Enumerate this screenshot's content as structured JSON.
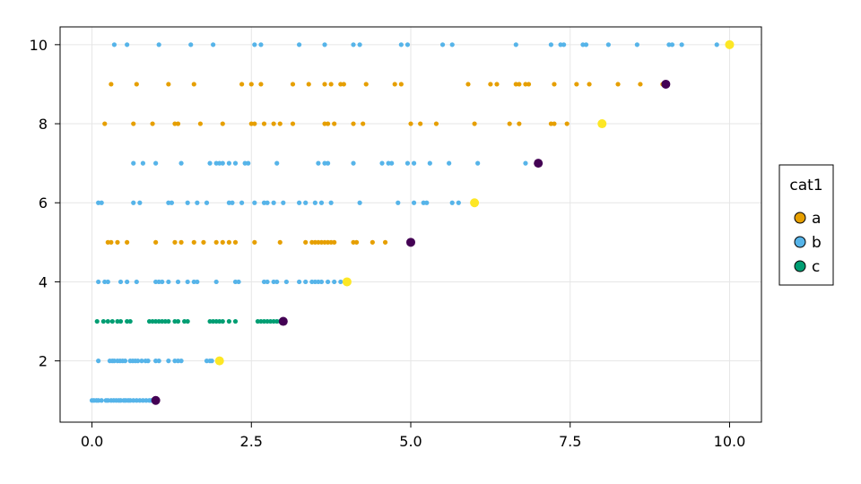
{
  "chart_data": {
    "type": "scatter",
    "xlim": [
      -0.5,
      10.5
    ],
    "ylim": [
      0.45,
      10.45
    ],
    "x_ticks": [
      {
        "value": 0,
        "label": "0.0"
      },
      {
        "value": 2.5,
        "label": "2.5"
      },
      {
        "value": 5,
        "label": "5.0"
      },
      {
        "value": 7.5,
        "label": "7.5"
      },
      {
        "value": 10,
        "label": "10.0"
      }
    ],
    "y_ticks": [
      {
        "value": 2,
        "label": "2"
      },
      {
        "value": 4,
        "label": "4"
      },
      {
        "value": 6,
        "label": "6"
      },
      {
        "value": 8,
        "label": "8"
      },
      {
        "value": 10,
        "label": "10"
      }
    ],
    "grid": true,
    "legend": {
      "title": "cat1",
      "placement": "right",
      "entries": [
        {
          "label": "a",
          "color": "#E69F00"
        },
        {
          "label": "b",
          "color": "#56B4E9"
        },
        {
          "label": "c",
          "color": "#009E73"
        }
      ]
    },
    "groups": [
      {
        "y": 1,
        "category": "b",
        "color": "#56B4E9",
        "x": [
          0.0,
          0.03,
          0.07,
          0.1,
          0.15,
          0.22,
          0.25,
          0.3,
          0.34,
          0.38,
          0.42,
          0.45,
          0.5,
          0.53,
          0.57,
          0.6,
          0.65,
          0.7,
          0.75,
          0.8,
          0.85,
          0.9,
          0.93,
          0.97
        ]
      },
      {
        "y": 2,
        "category": "b",
        "color": "#56B4E9",
        "x": [
          0.1,
          0.28,
          0.32,
          0.35,
          0.4,
          0.44,
          0.48,
          0.52,
          0.6,
          0.64,
          0.68,
          0.72,
          0.78,
          0.84,
          0.88,
          1.0,
          1.05,
          1.2,
          1.3,
          1.35,
          1.4,
          1.8,
          1.85,
          1.88
        ]
      },
      {
        "y": 3,
        "category": "c",
        "color": "#009E73",
        "x": [
          0.08,
          0.18,
          0.25,
          0.32,
          0.4,
          0.45,
          0.55,
          0.6,
          0.9,
          0.95,
          1.0,
          1.05,
          1.1,
          1.15,
          1.2,
          1.3,
          1.35,
          1.45,
          1.5,
          1.85,
          1.9,
          1.95,
          2.0,
          2.05,
          2.15,
          2.25,
          2.6,
          2.65,
          2.7,
          2.75,
          2.8,
          2.85,
          2.9,
          2.95
        ]
      },
      {
        "y": 4,
        "category": "b",
        "color": "#56B4E9",
        "x": [
          0.1,
          0.2,
          0.25,
          0.45,
          0.55,
          0.7,
          1.0,
          1.05,
          1.1,
          1.2,
          1.35,
          1.5,
          1.6,
          1.65,
          1.95,
          2.25,
          2.3,
          2.7,
          2.75,
          2.85,
          2.9,
          3.05,
          3.25,
          3.35,
          3.45,
          3.5,
          3.55,
          3.6,
          3.7,
          3.8,
          3.9
        ]
      },
      {
        "y": 5,
        "category": "a",
        "color": "#E69F00",
        "x": [
          0.25,
          0.3,
          0.4,
          0.55,
          1.0,
          1.3,
          1.4,
          1.6,
          1.75,
          1.95,
          2.05,
          2.15,
          2.25,
          2.55,
          2.95,
          3.35,
          3.45,
          3.5,
          3.55,
          3.6,
          3.65,
          3.7,
          3.75,
          3.8,
          4.1,
          4.15,
          4.4,
          4.6
        ]
      },
      {
        "y": 6,
        "category": "b",
        "color": "#56B4E9",
        "x": [
          0.1,
          0.15,
          0.65,
          0.75,
          1.2,
          1.25,
          1.5,
          1.65,
          1.8,
          2.15,
          2.2,
          2.35,
          2.55,
          2.7,
          2.75,
          2.85,
          3.0,
          3.25,
          3.35,
          3.5,
          3.6,
          3.75,
          4.2,
          4.8,
          5.05,
          5.2,
          5.25,
          5.65,
          5.75
        ]
      },
      {
        "y": 7,
        "category": "b",
        "color": "#56B4E9",
        "x": [
          0.65,
          0.8,
          1.0,
          1.4,
          1.85,
          1.95,
          2.0,
          2.05,
          2.15,
          2.25,
          2.4,
          2.45,
          2.9,
          3.55,
          3.65,
          3.7,
          4.1,
          4.55,
          4.65,
          4.7,
          4.95,
          5.05,
          5.3,
          5.6,
          6.05,
          6.8
        ]
      },
      {
        "y": 8,
        "category": "a",
        "color": "#E69F00",
        "x": [
          0.2,
          0.65,
          0.95,
          1.3,
          1.35,
          1.7,
          2.05,
          2.5,
          2.55,
          2.7,
          2.85,
          2.95,
          3.15,
          3.65,
          3.7,
          3.8,
          4.1,
          4.25,
          5.0,
          5.15,
          5.4,
          6.0,
          6.55,
          6.7,
          7.2,
          7.25,
          7.45
        ]
      },
      {
        "y": 9,
        "category": "a",
        "color": "#E69F00",
        "x": [
          0.3,
          0.7,
          1.2,
          1.6,
          2.35,
          2.5,
          2.65,
          3.15,
          3.4,
          3.65,
          3.75,
          3.9,
          3.95,
          4.3,
          4.75,
          4.85,
          5.9,
          6.25,
          6.35,
          6.65,
          6.7,
          6.8,
          6.85,
          7.25,
          7.6,
          7.8,
          8.25,
          8.6,
          8.95
        ]
      },
      {
        "y": 10,
        "category": "b",
        "color": "#56B4E9",
        "x": [
          0.35,
          0.55,
          1.05,
          1.55,
          1.9,
          2.55,
          2.65,
          3.25,
          3.65,
          4.1,
          4.2,
          4.85,
          4.95,
          5.5,
          5.65,
          6.65,
          7.2,
          7.35,
          7.4,
          7.7,
          7.75,
          8.1,
          8.55,
          9.05,
          9.1,
          9.25,
          9.8
        ]
      }
    ],
    "endpoints": [
      {
        "x": 1,
        "y": 1,
        "color": "#440154"
      },
      {
        "x": 2,
        "y": 2,
        "color": "#FDE725"
      },
      {
        "x": 3,
        "y": 3,
        "color": "#440154"
      },
      {
        "x": 4,
        "y": 4,
        "color": "#FDE725"
      },
      {
        "x": 5,
        "y": 5,
        "color": "#440154"
      },
      {
        "x": 6,
        "y": 6,
        "color": "#FDE725"
      },
      {
        "x": 7,
        "y": 7,
        "color": "#440154"
      },
      {
        "x": 8,
        "y": 8,
        "color": "#FDE725"
      },
      {
        "x": 9,
        "y": 9,
        "color": "#440154"
      },
      {
        "x": 10,
        "y": 10,
        "color": "#FDE725"
      }
    ]
  }
}
